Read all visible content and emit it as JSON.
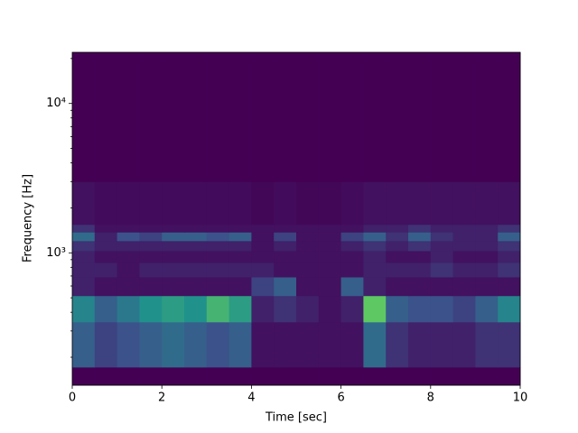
{
  "chart_data": {
    "type": "heatmap",
    "xlabel": "Time [sec]",
    "ylabel": "Frequency [Hz]",
    "colormap": "viridis",
    "yscale": "log",
    "xlim": [
      0,
      10
    ],
    "ylim": [
      130,
      22000
    ],
    "xticks": [
      0,
      2,
      4,
      6,
      8,
      10
    ],
    "yticks": [
      {
        "value": 1000,
        "label": "10³"
      },
      {
        "value": 10000,
        "label": "10⁴"
      }
    ],
    "yminorticks": [
      200,
      300,
      400,
      500,
      600,
      700,
      800,
      900,
      2000,
      3000,
      4000,
      5000,
      6000,
      7000,
      8000,
      9000,
      20000
    ],
    "x_edges": [
      0,
      0.5,
      1,
      1.5,
      2,
      2.5,
      3,
      3.5,
      4,
      4.5,
      5,
      5.5,
      6,
      6.5,
      7,
      7.5,
      8,
      8.5,
      9,
      9.5,
      10
    ],
    "y_edges": [
      130,
      172,
      345,
      517,
      690,
      862,
      1034,
      1206,
      1378,
      1550,
      3000,
      22000
    ],
    "z": [
      [
        0,
        0,
        0,
        0,
        0,
        0,
        0,
        0,
        0,
        0,
        0,
        0,
        0,
        0,
        0,
        0,
        0,
        0,
        0,
        0
      ],
      [
        0.3,
        0.2,
        0.25,
        0.3,
        0.35,
        0.3,
        0.25,
        0.3,
        0.05,
        0.05,
        0.05,
        0.05,
        0.05,
        0.35,
        0.15,
        0.1,
        0.1,
        0.1,
        0.15,
        0.15
      ],
      [
        0.45,
        0.3,
        0.4,
        0.5,
        0.55,
        0.5,
        0.65,
        0.55,
        0.1,
        0.15,
        0.1,
        0.05,
        0.1,
        0.75,
        0.3,
        0.25,
        0.25,
        0.2,
        0.3,
        0.45
      ],
      [
        0.1,
        0.05,
        0.05,
        0.05,
        0.05,
        0.05,
        0.05,
        0.05,
        0.2,
        0.3,
        0.05,
        0.05,
        0.3,
        0.1,
        0.05,
        0.05,
        0.05,
        0.05,
        0.05,
        0.05
      ],
      [
        0.1,
        0.1,
        0.05,
        0.1,
        0.1,
        0.1,
        0.1,
        0.1,
        0.1,
        0.05,
        0.05,
        0.05,
        0.05,
        0.1,
        0.1,
        0.1,
        0.15,
        0.1,
        0.1,
        0.15
      ],
      [
        0.1,
        0.05,
        0.05,
        0.05,
        0.05,
        0.05,
        0.05,
        0.05,
        0.05,
        0.05,
        0.05,
        0.05,
        0.05,
        0.1,
        0.05,
        0.05,
        0.1,
        0.05,
        0.05,
        0.1
      ],
      [
        0.15,
        0.1,
        0.1,
        0.1,
        0.1,
        0.1,
        0.1,
        0.1,
        0.05,
        0.1,
        0.05,
        0.05,
        0.1,
        0.15,
        0.1,
        0.15,
        0.1,
        0.1,
        0.1,
        0.15
      ],
      [
        0.35,
        0.1,
        0.25,
        0.2,
        0.3,
        0.3,
        0.25,
        0.3,
        0.05,
        0.2,
        0.05,
        0.05,
        0.2,
        0.3,
        0.15,
        0.3,
        0.15,
        0.1,
        0.1,
        0.3
      ],
      [
        0.15,
        0.05,
        0.05,
        0.05,
        0.05,
        0.05,
        0.05,
        0.05,
        0.05,
        0.05,
        0.05,
        0.05,
        0.05,
        0.1,
        0.1,
        0.15,
        0.1,
        0.1,
        0.1,
        0.15
      ],
      [
        0.05,
        0.03,
        0.03,
        0.03,
        0.03,
        0.03,
        0.03,
        0.03,
        0.02,
        0.03,
        0.02,
        0.02,
        0.03,
        0.05,
        0.05,
        0.05,
        0.05,
        0.05,
        0.05,
        0.05
      ],
      [
        0,
        0,
        0,
        0,
        0,
        0,
        0,
        0,
        0,
        0,
        0,
        0,
        0,
        0,
        0,
        0,
        0,
        0,
        0,
        0
      ]
    ]
  }
}
